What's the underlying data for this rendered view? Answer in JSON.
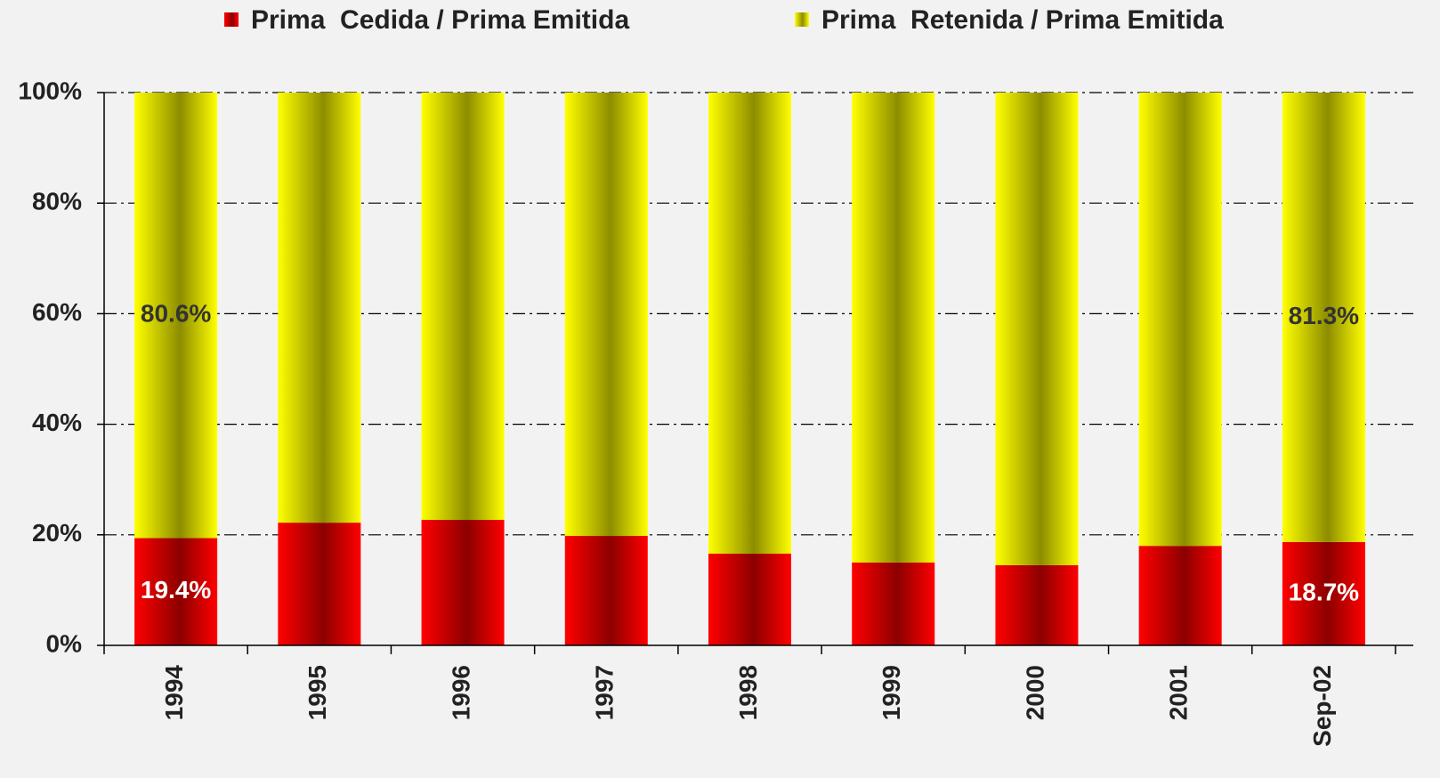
{
  "chart_data": {
    "type": "stacked_bar",
    "categories": [
      "1994",
      "1995",
      "1996",
      "1997",
      "1998",
      "1999",
      "2000",
      "2001",
      "Sep-02"
    ],
    "series": [
      {
        "name": "Prima  Cedida / Prima Emitida",
        "color": "#ff0000",
        "values": [
          19.4,
          22.2,
          22.7,
          19.8,
          16.6,
          15.0,
          14.5,
          18.0,
          18.7
        ],
        "value_labels": [
          "19.4%",
          null,
          null,
          null,
          null,
          null,
          null,
          null,
          "18.7%"
        ]
      },
      {
        "name": "Prima  Retenida / Prima Emitida",
        "color": "#ffff00",
        "values": [
          80.6,
          77.8,
          77.3,
          80.2,
          83.4,
          85.0,
          85.5,
          82.0,
          81.3
        ],
        "value_labels": [
          "80.6%",
          null,
          null,
          null,
          null,
          null,
          null,
          null,
          "81.3%"
        ]
      }
    ],
    "ylim": [
      0,
      100
    ],
    "yticks": [
      {
        "value": 0,
        "label": "0%"
      },
      {
        "value": 20,
        "label": "20%"
      },
      {
        "value": 40,
        "label": "40%"
      },
      {
        "value": 60,
        "label": "60%"
      },
      {
        "value": 80,
        "label": "80%"
      },
      {
        "value": 100,
        "label": "100%"
      }
    ],
    "grid": true,
    "legend": "top"
  }
}
